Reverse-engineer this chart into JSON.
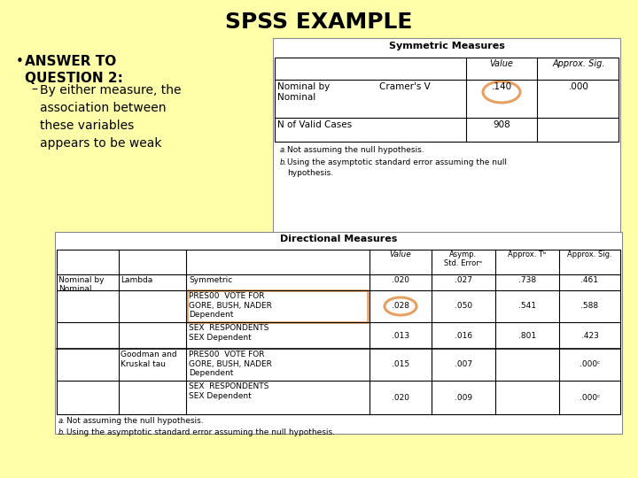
{
  "background_color": "#FFFFAA",
  "title": "SPSS EXAMPLE",
  "title_fontsize": 18,
  "title_fontweight": "bold",
  "bullet_text": "ANSWER TO\nQUESTION 2:",
  "sub_bullet_text": "By either measure, the\nassociation between\nthese variables\nappears to be weak",
  "sym_table_title": "Symmetric Measures",
  "sym_table": {
    "circle_color": "#E8A060"
  },
  "dir_table_title": "Directional Measures",
  "dir_table": {
    "circle_color": "#E8A060",
    "box_color": "#E8A060"
  }
}
